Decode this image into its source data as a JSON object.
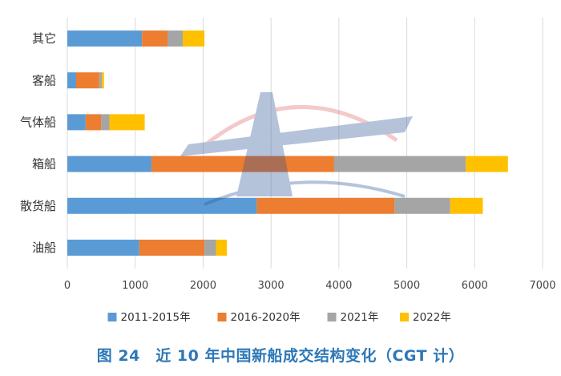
{
  "caption": "图 24　近 10 年中国新船成交结构变化（CGT 计）",
  "colors": {
    "series_1": "#5b9bd5",
    "series_2": "#ed7d31",
    "series_3": "#a5a5a5",
    "series_4": "#ffc000",
    "caption": "#2e78b8"
  },
  "chart_data": {
    "type": "bar",
    "orientation": "horizontal",
    "stacked": true,
    "categories": [
      "其它",
      "客船",
      "气体船",
      "箱船",
      "散货船",
      "油船"
    ],
    "series": [
      {
        "name": "2011-2015年",
        "values": [
          1100,
          130,
          270,
          1240,
          2790,
          1060
        ]
      },
      {
        "name": "2016-2020年",
        "values": [
          380,
          340,
          230,
          2690,
          2030,
          960
        ]
      },
      {
        "name": "2021年",
        "values": [
          220,
          40,
          120,
          1940,
          820,
          170
        ]
      },
      {
        "name": "2022年",
        "values": [
          320,
          30,
          520,
          620,
          480,
          160
        ]
      }
    ],
    "xlim": [
      0,
      7000
    ],
    "xticks": [
      0,
      1000,
      2000,
      3000,
      4000,
      5000,
      6000,
      7000
    ],
    "grid": "vertical",
    "legend_position": "bottom"
  }
}
